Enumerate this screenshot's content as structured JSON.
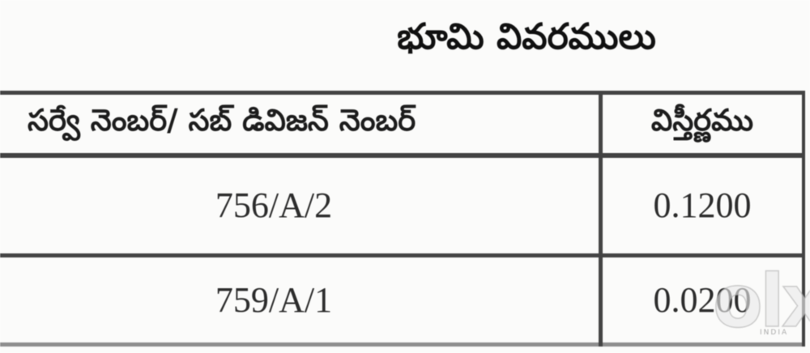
{
  "page": {
    "title": "భూమి వివరములు"
  },
  "table": {
    "headers": [
      "సర్వే నెంబర్/ సబ్ డివిజన్ నెంబర్",
      "విస్తీర్ణము"
    ],
    "rows": [
      {
        "survey_number": "756/A/2",
        "extent": "0.1200"
      },
      {
        "survey_number": "759/A/1",
        "extent": "0.0200"
      }
    ]
  },
  "watermark": {
    "logo": "olx",
    "subtext": "INDIA"
  },
  "colors": {
    "border": "#434343",
    "bottom_border": "#8d8d8d",
    "text": "#1c1c1c",
    "background": "#fbfbfa"
  }
}
